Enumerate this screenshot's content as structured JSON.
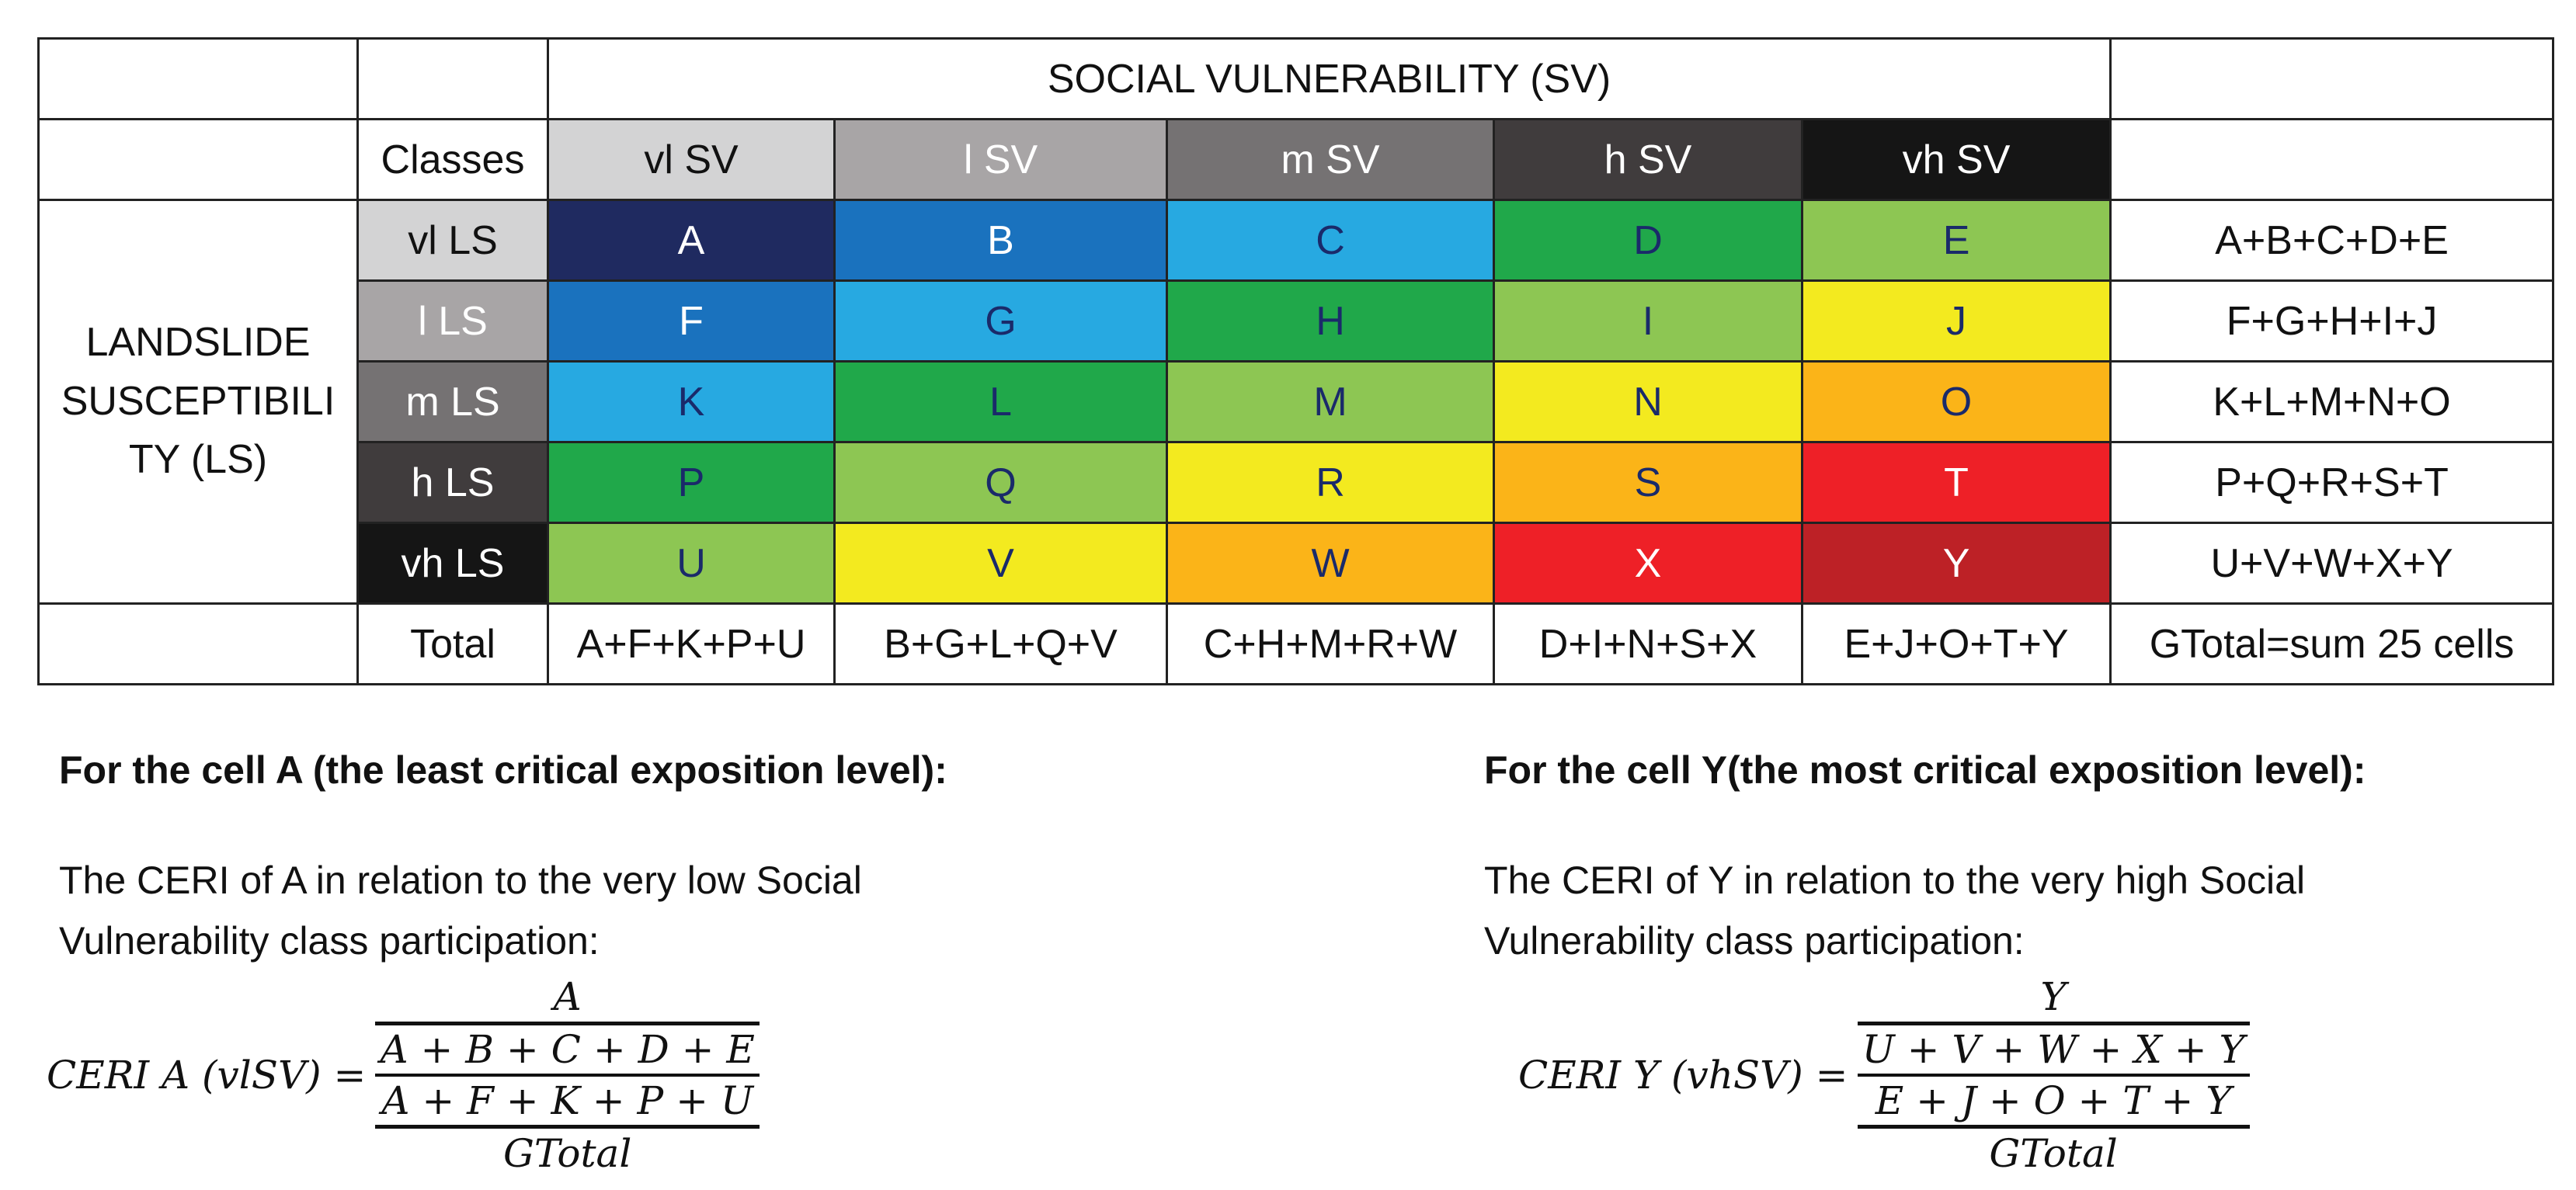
{
  "table": {
    "sv_title": "SOCIAL VULNERABILITY (SV)",
    "ls_title": "LANDSLIDE SUSCEPTIBILI TY (LS)",
    "classes_label": "Classes",
    "total_label": "Total",
    "sv_classes": [
      {
        "label": "vl SV",
        "bg": "#d3d3d4",
        "fg": "#111111"
      },
      {
        "label": "l SV",
        "bg": "#a8a5a6",
        "fg": "#ffffff"
      },
      {
        "label": "m SV",
        "bg": "#757273",
        "fg": "#ffffff"
      },
      {
        "label": "h SV",
        "bg": "#403c3d",
        "fg": "#ffffff"
      },
      {
        "label": "vh SV",
        "bg": "#151515",
        "fg": "#ffffff"
      }
    ],
    "ls_classes": [
      {
        "label": "vl LS",
        "bg": "#d3d3d4",
        "fg": "#111111"
      },
      {
        "label": "l LS",
        "bg": "#a8a5a6",
        "fg": "#ffffff"
      },
      {
        "label": "m LS",
        "bg": "#757273",
        "fg": "#ffffff"
      },
      {
        "label": "h LS",
        "bg": "#403c3d",
        "fg": "#ffffff"
      },
      {
        "label": "vh LS",
        "bg": "#151515",
        "fg": "#ffffff"
      }
    ],
    "rows": [
      {
        "cells": [
          {
            "label": "A",
            "bg": "#1f2a60",
            "fg": "#ffffff"
          },
          {
            "label": "B",
            "bg": "#1a72be",
            "fg": "#ffffff"
          },
          {
            "label": "C",
            "bg": "#27a9e1",
            "fg": "#1a2a6a"
          },
          {
            "label": "D",
            "bg": "#20a84a",
            "fg": "#1a2a6a"
          },
          {
            "label": "E",
            "bg": "#8dc653",
            "fg": "#1a2a6a"
          }
        ],
        "sum": "A+B+C+D+E"
      },
      {
        "cells": [
          {
            "label": "F",
            "bg": "#1a72be",
            "fg": "#ffffff"
          },
          {
            "label": "G",
            "bg": "#27a9e1",
            "fg": "#1a2a6a"
          },
          {
            "label": "H",
            "bg": "#20a84a",
            "fg": "#1a2a6a"
          },
          {
            "label": "I",
            "bg": "#8dc653",
            "fg": "#1a2a6a"
          },
          {
            "label": "J",
            "bg": "#f3ea1f",
            "fg": "#1a2a6a"
          }
        ],
        "sum": "F+G+H+I+J"
      },
      {
        "cells": [
          {
            "label": "K",
            "bg": "#27a9e1",
            "fg": "#1a2a6a"
          },
          {
            "label": "L",
            "bg": "#20a84a",
            "fg": "#1a2a6a"
          },
          {
            "label": "M",
            "bg": "#8dc653",
            "fg": "#1a2a6a"
          },
          {
            "label": "N",
            "bg": "#f3ea1f",
            "fg": "#1a2a6a"
          },
          {
            "label": "O",
            "bg": "#fbb418",
            "fg": "#1a2a6a"
          }
        ],
        "sum": "K+L+M+N+O"
      },
      {
        "cells": [
          {
            "label": "P",
            "bg": "#20a84a",
            "fg": "#1a2a6a"
          },
          {
            "label": "Q",
            "bg": "#8dc653",
            "fg": "#1a2a6a"
          },
          {
            "label": "R",
            "bg": "#f3ea1f",
            "fg": "#1a2a6a"
          },
          {
            "label": "S",
            "bg": "#fbb418",
            "fg": "#1a2a6a"
          },
          {
            "label": "T",
            "bg": "#ee2027",
            "fg": "#ffffff"
          }
        ],
        "sum": "P+Q+R+S+T"
      },
      {
        "cells": [
          {
            "label": "U",
            "bg": "#8dc653",
            "fg": "#1a2a6a"
          },
          {
            "label": "V",
            "bg": "#f3ea1f",
            "fg": "#1a2a6a"
          },
          {
            "label": "W",
            "bg": "#fbb418",
            "fg": "#1a2a6a"
          },
          {
            "label": "X",
            "bg": "#ee2027",
            "fg": "#ffffff"
          },
          {
            "label": "Y",
            "bg": "#bd2126",
            "fg": "#ffffff"
          }
        ],
        "sum": "U+V+W+X+Y"
      }
    ],
    "totals": [
      "A+F+K+P+U",
      "B+G+L+Q+V",
      "C+H+M+R+W",
      "D+I+N+S+X",
      "E+J+O+T+Y"
    ],
    "grand_total": "GTotal=sum 25 cells"
  },
  "left": {
    "heading": "For the cell A (the least critical exposition level):",
    "para_line1": "The CERI of A in relation to the very low Social",
    "para_line2": "Vulnerability class participation:",
    "formula": {
      "lhs": "CERI A (vlSV) =",
      "numerator": "A",
      "inner_numerator": "A + B + C + D + E",
      "inner_denominator": "A + F + K + P + U",
      "denominator": "GTotal"
    }
  },
  "right": {
    "heading": "For the cell Y(the most critical exposition level):",
    "para_line1": "The CERI of Y in relation to the very high Social",
    "para_line2": "Vulnerability class participation:",
    "formula": {
      "lhs": "CERI Y (vhSV) =",
      "numerator": "Y",
      "inner_numerator": "U + V + W + X + Y",
      "inner_denominator": "E + J + O + T + Y",
      "denominator": "GTotal"
    }
  }
}
